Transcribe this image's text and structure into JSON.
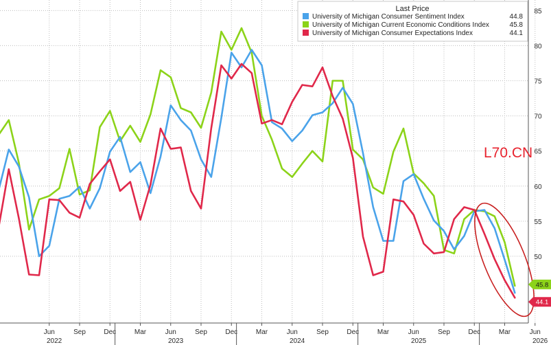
{
  "chart_data": {
    "type": "line",
    "legend": {
      "title": "Last Price",
      "placement": "top-right"
    },
    "grid": {
      "horizontal": true,
      "vertical": true
    },
    "y_axis": {
      "side": "right",
      "range": [
        40.5,
        86.5
      ],
      "ticks": [
        50,
        55,
        60,
        65,
        70,
        75,
        80,
        85
      ]
    },
    "x_axis": {
      "month_ticks": [
        "Jun",
        "Sep",
        "Dec",
        "Mar",
        "Jun",
        "Sep",
        "Dec",
        "Mar",
        "Jun",
        "Sep",
        "Dec",
        "Mar",
        "Jun",
        "Sep",
        "Dec",
        "Mar",
        "Jun"
      ],
      "year_labels": [
        {
          "label": "2022",
          "month_index": 6
        },
        {
          "label": "2023",
          "month_index": 18
        },
        {
          "label": "2024",
          "month_index": 30
        },
        {
          "label": "2025",
          "month_index": 42
        },
        {
          "label": "2026",
          "month_index": 54
        }
      ]
    },
    "series": [
      {
        "name": "University of Michigan Consumer Sentiment Index",
        "last_value": "44.8",
        "color": "#4aa3ea",
        "values": [
          59.4,
          65.2,
          62.8,
          58.4,
          50.0,
          51.5,
          58.2,
          58.6,
          59.9,
          56.8,
          59.7,
          64.9,
          67.0,
          62.0,
          63.4,
          59.0,
          64.2,
          71.5,
          69.4,
          67.9,
          63.8,
          61.3,
          69.7,
          79.0,
          76.9,
          79.4,
          77.2,
          69.1,
          68.2,
          66.4,
          67.9,
          70.1,
          70.5,
          71.8,
          74.0,
          71.7,
          64.7,
          57.0,
          52.2,
          52.2,
          60.7,
          61.7,
          58.2,
          55.1,
          53.6,
          51.0,
          52.9,
          56.4,
          56.6,
          54.0,
          49.5,
          44.8
        ]
      },
      {
        "name": "University of Michigan Current Economic Conditions Index",
        "last_value": "45.8",
        "color": "#8cd319",
        "values": [
          67.3,
          69.4,
          63.3,
          53.8,
          58.1,
          58.6,
          59.7,
          65.3,
          58.8,
          59.4,
          68.4,
          70.7,
          66.4,
          68.6,
          66.3,
          70.2,
          76.5,
          75.5,
          71.1,
          70.5,
          68.3,
          73.3,
          82.0,
          79.4,
          82.5,
          79.0,
          70.0,
          66.6,
          62.5,
          61.3,
          63.2,
          65.0,
          63.5,
          75.0,
          75.0,
          65.2,
          63.8,
          59.8,
          58.9,
          64.9,
          68.2,
          61.8,
          60.4,
          58.6,
          50.9,
          50.4,
          55.3,
          56.6,
          56.4,
          55.7,
          52.0,
          45.8
        ]
      },
      {
        "name": "University of Michigan Consumer Expectations Index",
        "last_value": "44.1",
        "color": "#e0284a",
        "values": [
          54.1,
          62.4,
          55.4,
          47.4,
          47.3,
          58.1,
          58.0,
          56.2,
          55.5,
          60.3,
          62.1,
          63.8,
          59.3,
          60.6,
          55.2,
          60.2,
          68.2,
          65.3,
          65.5,
          59.3,
          56.8,
          68.2,
          77.2,
          75.3,
          77.4,
          76.1,
          68.9,
          69.4,
          68.8,
          72.0,
          74.4,
          74.2,
          76.9,
          72.8,
          69.6,
          64.0,
          52.8,
          47.3,
          47.8,
          58.1,
          57.8,
          55.9,
          51.8,
          50.4,
          50.6,
          55.3,
          57.0,
          56.6,
          53.2,
          49.6,
          46.6,
          44.1
        ]
      }
    ]
  },
  "watermark": "L70.CN",
  "colors": {
    "grid": "#bdbdbd",
    "axis_text": "#2b2b2b",
    "highlight_ellipse": "#c81f1f",
    "label_text_on_tag": "#1a1a1a"
  }
}
